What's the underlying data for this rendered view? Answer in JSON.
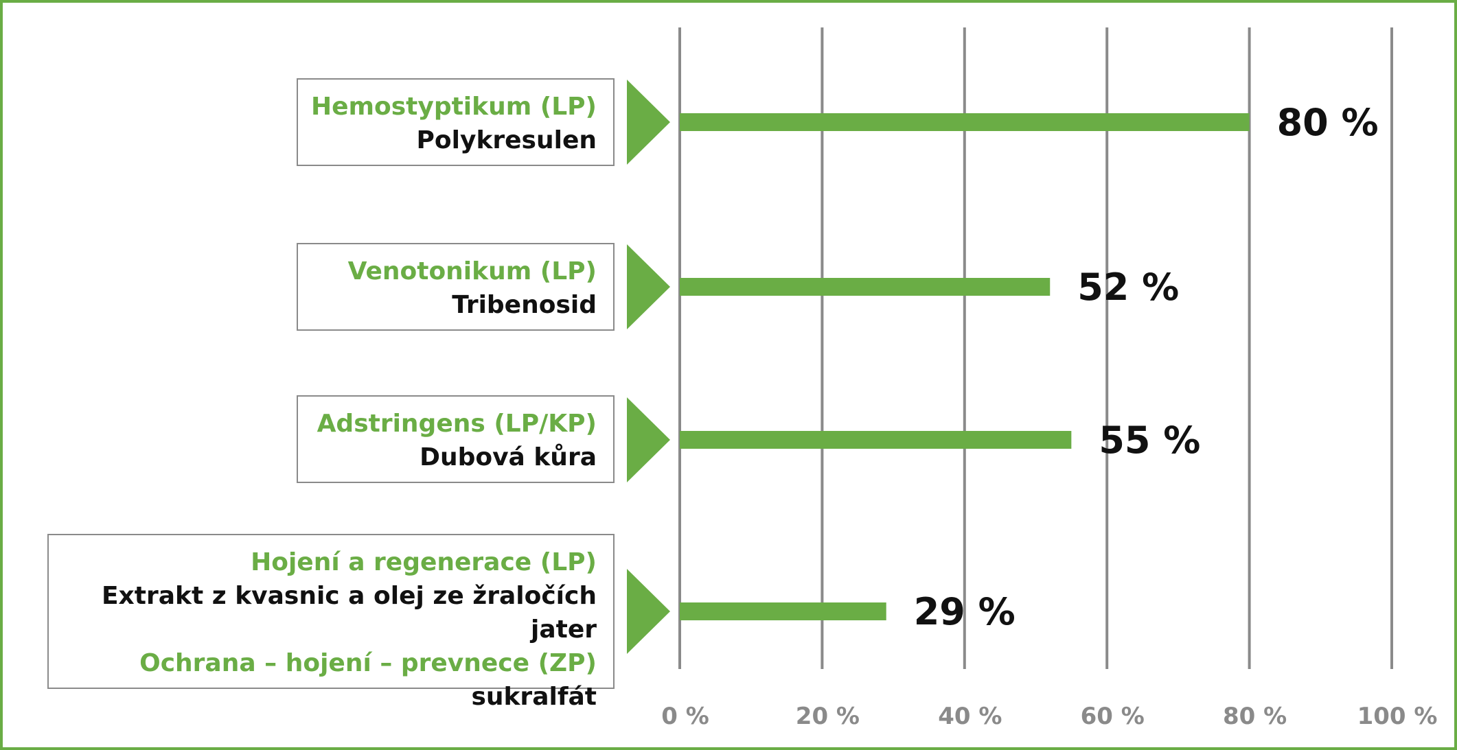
{
  "chart_data": {
    "type": "bar",
    "orientation": "horizontal",
    "categories": [
      [
        "Hemostyptikum (LP)",
        "Polykresulen"
      ],
      [
        "Venotonikum (LP)",
        "Tribenosid"
      ],
      [
        "Adstringens (LP/KP)",
        "Dubová kůra"
      ],
      [
        "Hojení a regenerace (LP)",
        "Extrakt z kvasnic a olej ze žraločích jater",
        "Ochrana – hojení – prevnece (ZP)",
        "sukralfát"
      ]
    ],
    "values": [
      80,
      52,
      55,
      29
    ],
    "value_labels": [
      "80 %",
      "52 %",
      "55 %",
      "29 %"
    ],
    "xlim": [
      0,
      100
    ],
    "xticks": [
      0,
      20,
      40,
      60,
      80,
      100
    ],
    "xtick_labels": [
      "0 %",
      "20 %",
      "40 %",
      "60 %",
      "80 %",
      "100 %"
    ],
    "grid": "vertical",
    "colors": {
      "bar": "#6aad45",
      "accent_text": "#6aad45",
      "text": "#111111",
      "grid": "#8a8a8a",
      "tick": "#8a8a8a",
      "frame": "#6aad45"
    }
  }
}
